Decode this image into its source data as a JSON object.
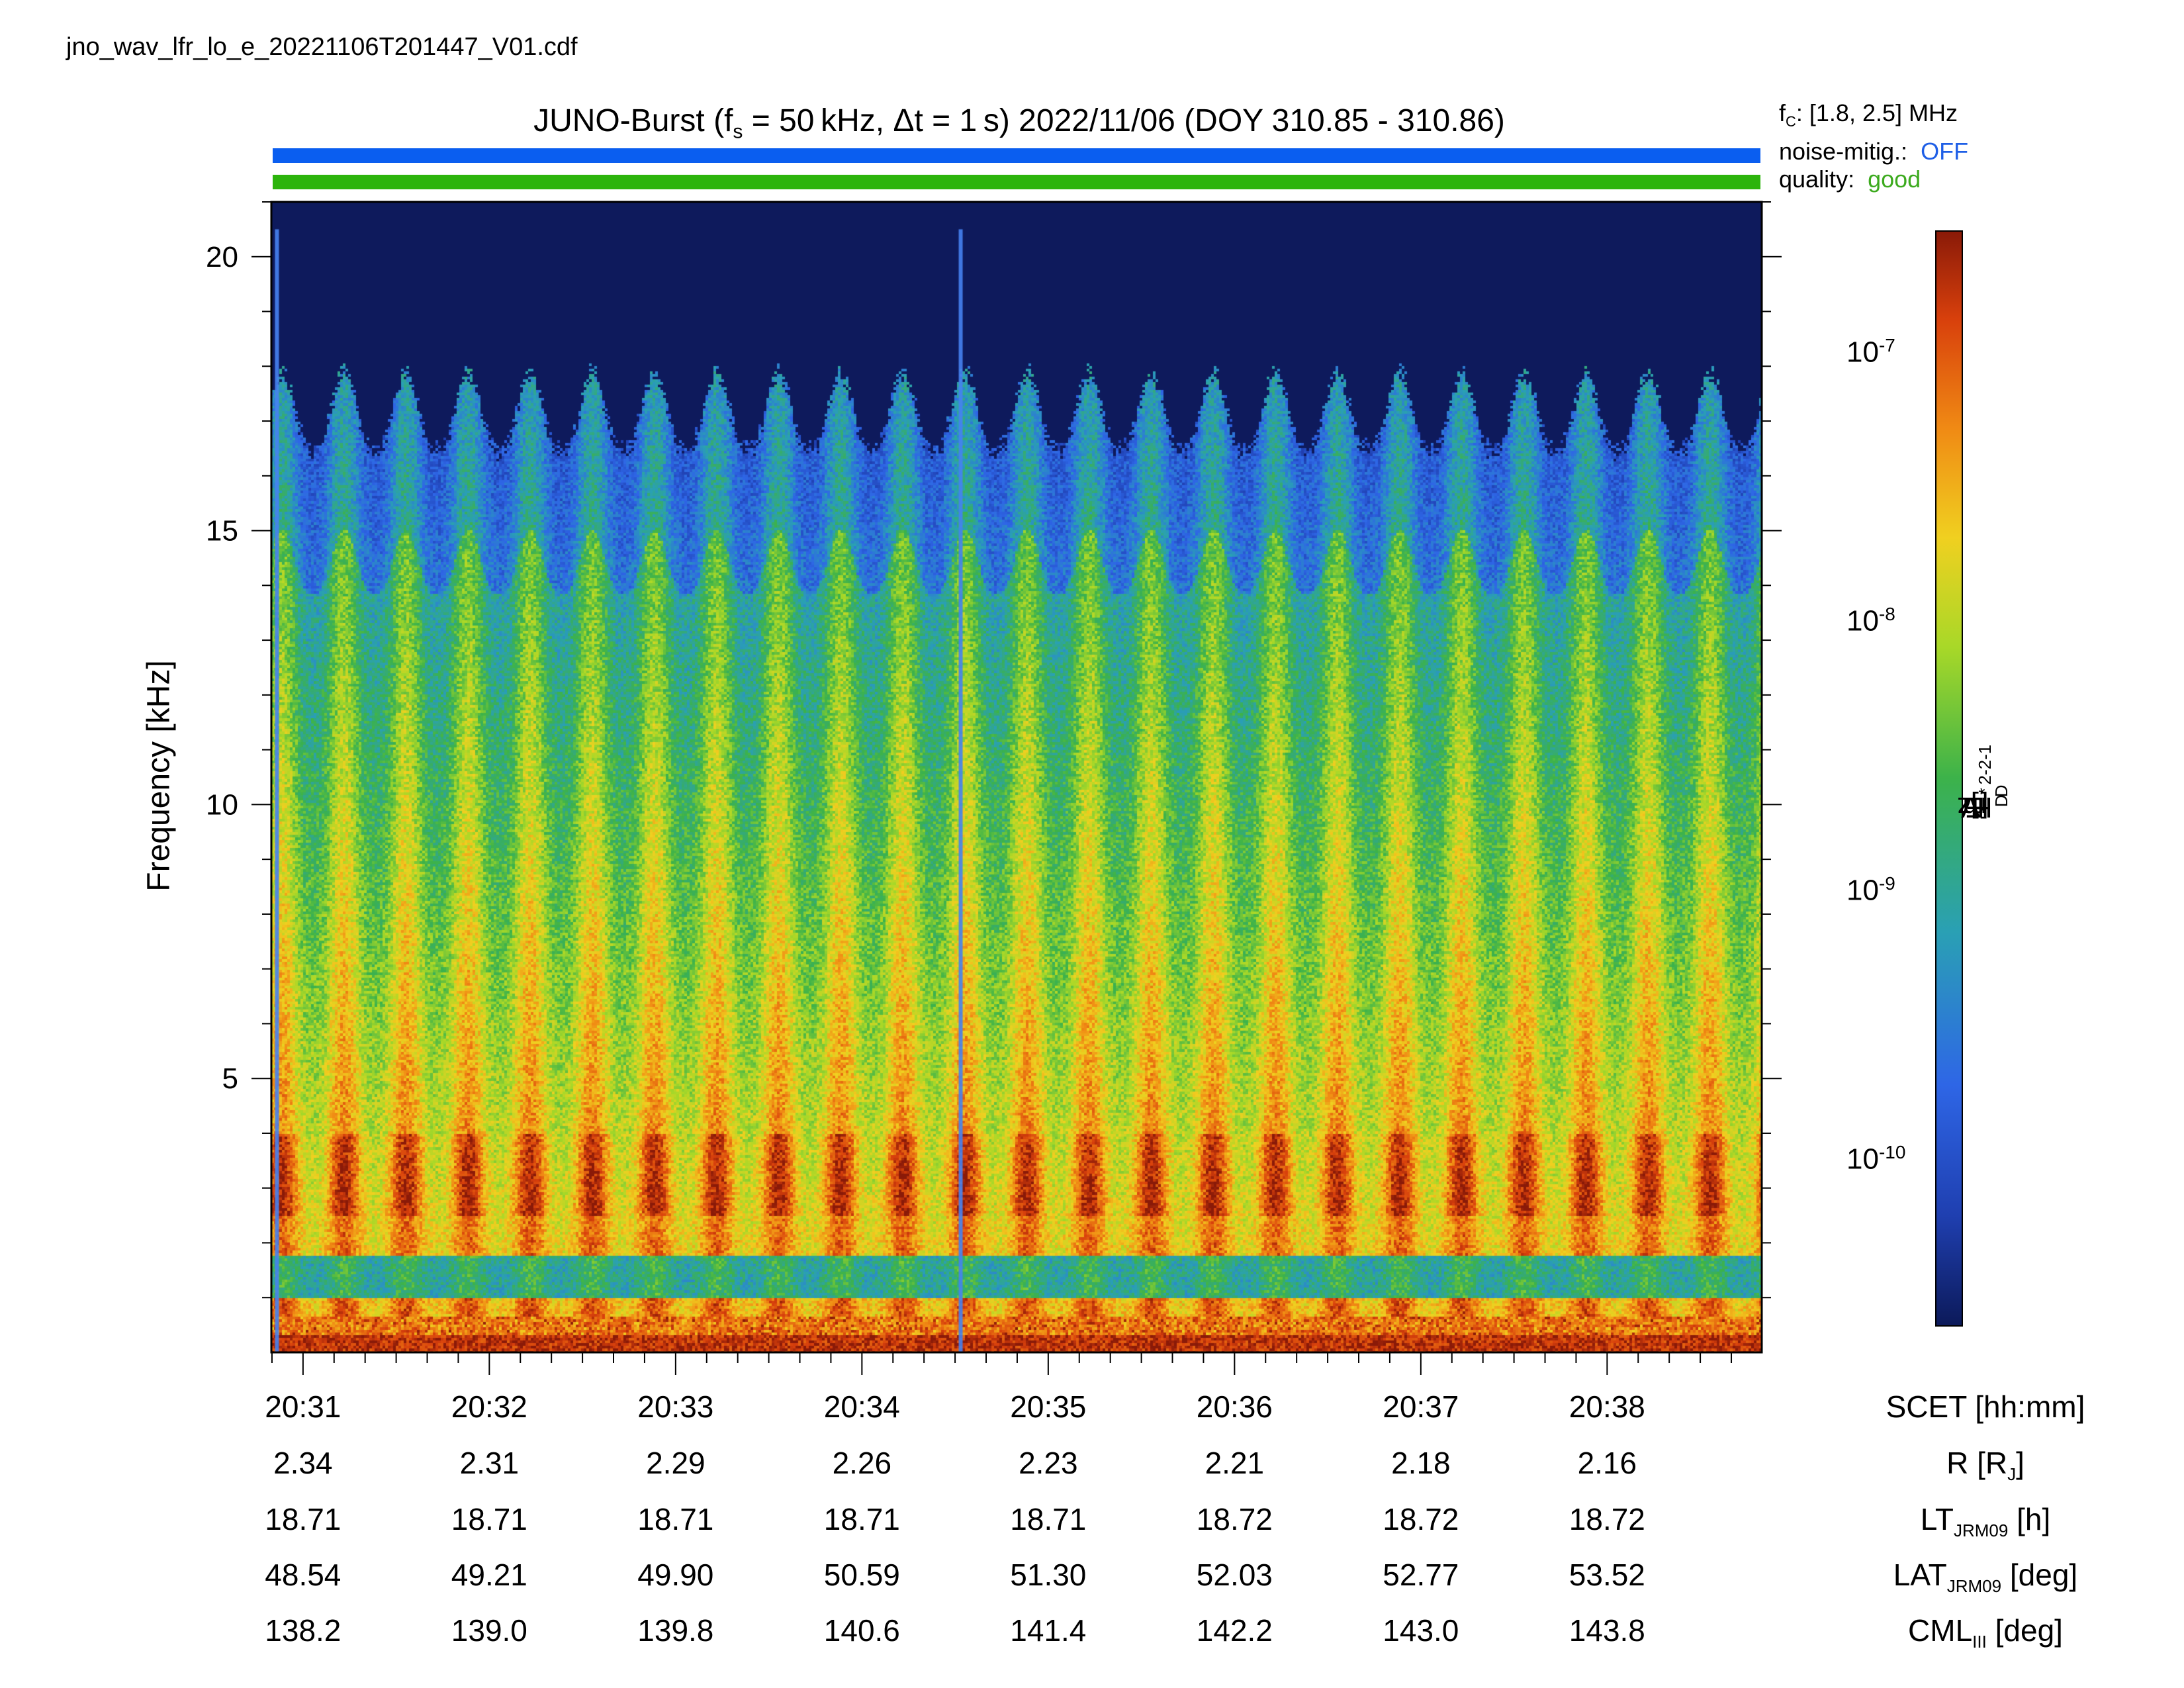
{
  "file_name": "jno_wav_lfr_lo_e_20221106T201447_V01.cdf",
  "title": {
    "prefix": "JUNO-Burst (f",
    "sub": "s",
    "middle": " = 50 kHz, Δt = 1 s)  2022/11/06 (DOY 310.85 - 310.86)"
  },
  "status": {
    "fc_label": "f",
    "fc_sub": "C",
    "fc_value": ": [1.8, 2.5] MHz",
    "noise_label": "noise-mitig.:",
    "noise_value": "OFF",
    "quality_label": "quality:",
    "quality_value": "good"
  },
  "colors": {
    "blue_bar": "#0a5ef0",
    "green_bar": "#2cb40c",
    "noise_off": "#1f5fe6",
    "quality_good": "#3caa1e",
    "plot_background": "#0e1a5c"
  },
  "chart_data": {
    "type": "heatmap",
    "ylabel": "Frequency [kHz]",
    "ylim": [
      0,
      21
    ],
    "yticks": [
      5,
      10,
      15,
      20
    ],
    "x_ticks": [
      "20:31",
      "20:32",
      "20:33",
      "20:34",
      "20:35",
      "20:36",
      "20:37",
      "20:38"
    ],
    "x_start_minute": 30.83,
    "x_end_minute": 38.83,
    "colorbar": {
      "label_main": "E",
      "label_sub1": "D",
      "label_mid": "E",
      "label_sup": "*",
      "label_sub2": "D",
      "label_units_a": "  [V",
      "label_units_b": " m",
      "label_units_c": " Hz",
      "label_units_d": "]",
      "scale": "log",
      "range": [
        2.5e-11,
        2.9e-07
      ],
      "ticks": [
        {
          "base": "10",
          "exp": "-7",
          "value": 1e-07
        },
        {
          "base": "10",
          "exp": "-8",
          "value": 1e-08
        },
        {
          "base": "10",
          "exp": "-9",
          "value": 1e-09
        },
        {
          "base": "10",
          "exp": "-10",
          "value": 1e-10
        }
      ]
    },
    "features": {
      "burst_count": 24,
      "emission_top_kHz": 17.5,
      "intense_band_kHz": [
        2.5,
        4.0
      ],
      "gap_band_kHz": [
        1.0,
        1.8
      ],
      "spike_minutes": [
        30.86,
        34.53
      ]
    }
  },
  "ephemeris": {
    "rows": [
      {
        "label": "SCET [hh:mm]",
        "values": []
      },
      {
        "label_main": "R [R",
        "label_sub": "J",
        "label_end": "]",
        "values": [
          "2.34",
          "2.31",
          "2.29",
          "2.26",
          "2.23",
          "2.21",
          "2.18",
          "2.16"
        ]
      },
      {
        "label_main": "LT",
        "label_sub": "JRM09",
        "label_end": " [h]",
        "values": [
          "18.71",
          "18.71",
          "18.71",
          "18.71",
          "18.71",
          "18.72",
          "18.72",
          "18.72"
        ]
      },
      {
        "label_main": "LAT",
        "label_sub": "JRM09",
        "label_end": " [deg]",
        "values": [
          "48.54",
          "49.21",
          "49.90",
          "50.59",
          "51.30",
          "52.03",
          "52.77",
          "53.52"
        ]
      },
      {
        "label_main": "CML",
        "label_sub": "III",
        "label_end": " [deg]",
        "values": [
          "138.2",
          "139.0",
          "139.8",
          "140.6",
          "141.4",
          "142.2",
          "143.0",
          "143.8"
        ]
      }
    ]
  }
}
